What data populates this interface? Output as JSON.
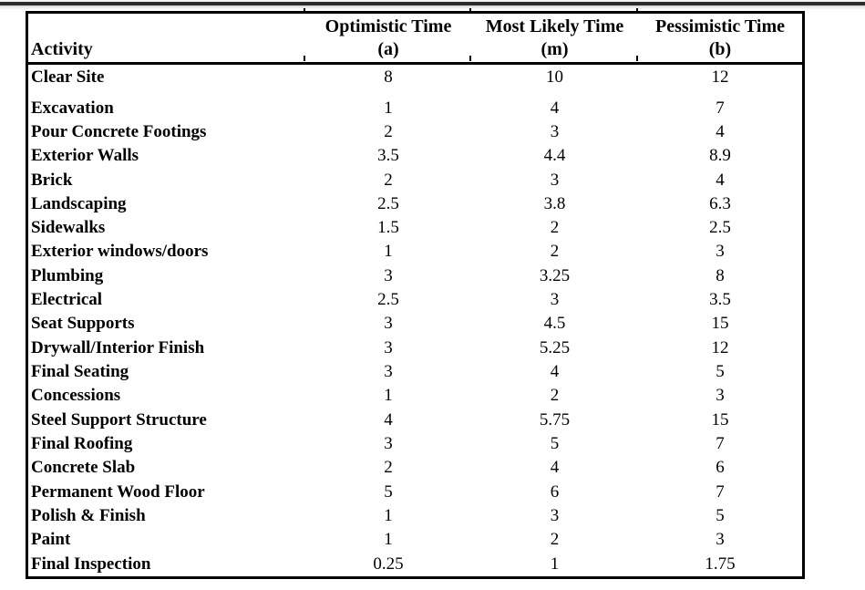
{
  "table": {
    "columns": [
      {
        "label": "Activity",
        "sub": ""
      },
      {
        "label": "Optimistic Time",
        "sub": "(a)"
      },
      {
        "label": "Most Likely Time",
        "sub": "(m)"
      },
      {
        "label": "Pessimistic Time",
        "sub": "(b)"
      }
    ],
    "rows": [
      {
        "activity": "Clear Site",
        "a": "8",
        "m": "10",
        "b": "12"
      },
      {
        "activity": "Excavation",
        "a": "1",
        "m": "4",
        "b": "7"
      },
      {
        "activity": "Pour Concrete Footings",
        "a": "2",
        "m": "3",
        "b": "4"
      },
      {
        "activity": "Exterior Walls",
        "a": "3.5",
        "m": "4.4",
        "b": "8.9"
      },
      {
        "activity": "Brick",
        "a": "2",
        "m": "3",
        "b": "4"
      },
      {
        "activity": "Landscaping",
        "a": "2.5",
        "m": "3.8",
        "b": "6.3"
      },
      {
        "activity": "Sidewalks",
        "a": "1.5",
        "m": "2",
        "b": "2.5"
      },
      {
        "activity": "Exterior windows/doors",
        "a": "1",
        "m": "2",
        "b": "3"
      },
      {
        "activity": "Plumbing",
        "a": "3",
        "m": "3.25",
        "b": "8"
      },
      {
        "activity": "Electrical",
        "a": "2.5",
        "m": "3",
        "b": "3.5"
      },
      {
        "activity": "Seat Supports",
        "a": "3",
        "m": "4.5",
        "b": "15"
      },
      {
        "activity": "Drywall/Interior Finish",
        "a": "3",
        "m": "5.25",
        "b": "12"
      },
      {
        "activity": "Final Seating",
        "a": "3",
        "m": "4",
        "b": "5"
      },
      {
        "activity": "Concessions",
        "a": "1",
        "m": "2",
        "b": "3"
      },
      {
        "activity": "Steel Support Structure",
        "a": "4",
        "m": "5.75",
        "b": "15"
      },
      {
        "activity": "Final Roofing",
        "a": "3",
        "m": "5",
        "b": "7"
      },
      {
        "activity": "Concrete Slab",
        "a": "2",
        "m": "4",
        "b": "6"
      },
      {
        "activity": "Permanent Wood Floor",
        "a": "5",
        "m": "6",
        "b": "7"
      },
      {
        "activity": "Polish & Finish",
        "a": "1",
        "m": "3",
        "b": "5"
      },
      {
        "activity": "Paint",
        "a": "1",
        "m": "2",
        "b": "3"
      },
      {
        "activity": "Final Inspection",
        "a": "0.25",
        "m": "1",
        "b": "1.75"
      }
    ]
  },
  "colors": {
    "page_background": "#ffffff",
    "table_border": "#000000",
    "text": "#000000",
    "top_edge_bar": "#2b2b2b"
  }
}
